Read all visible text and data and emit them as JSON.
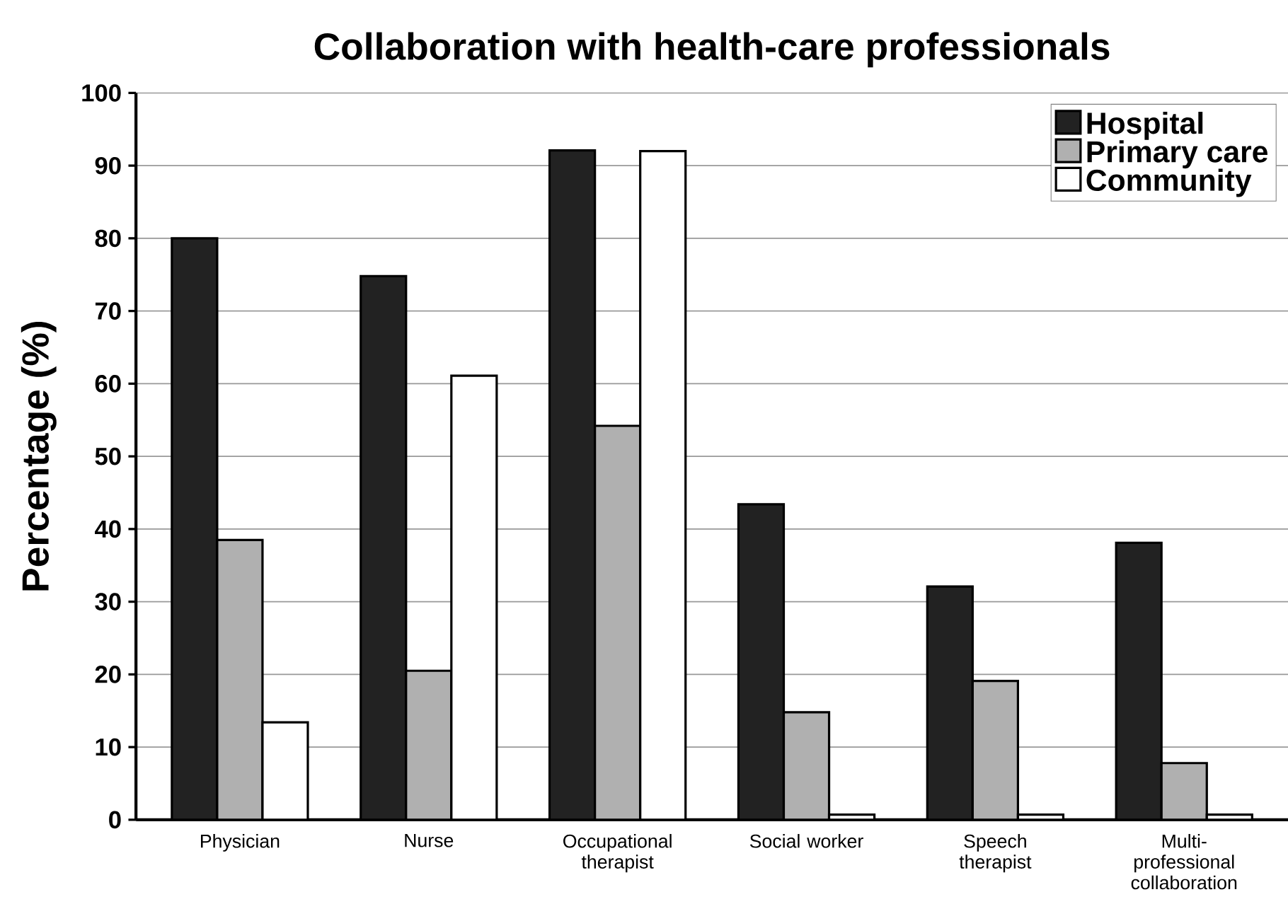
{
  "chart_data": {
    "type": "bar",
    "title": "Collaboration with health-care professionals",
    "ylabel": "Percentage (%)",
    "categories": [
      "Physician",
      "Nurse",
      "Occupational therapist",
      "Social worker",
      "Speech therapist",
      "Multi-professional collaboration"
    ],
    "series": [
      {
        "name": "Hospital",
        "color": "#222222",
        "values": [
          80,
          74.8,
          92.1,
          43.4,
          32.1,
          38.1
        ]
      },
      {
        "name": "Primary care",
        "color": "#b0b0b0",
        "values": [
          38.5,
          20.5,
          54.2,
          14.8,
          19.1,
          7.8
        ]
      },
      {
        "name": "Community",
        "color": "#ffffff",
        "values": [
          13.4,
          61.1,
          92,
          0.7,
          0.7,
          0.7
        ]
      }
    ],
    "ylim": [
      0,
      100
    ],
    "yticks": [
      0,
      10,
      20,
      30,
      40,
      50,
      60,
      70,
      80,
      90,
      100
    ],
    "grid": "y",
    "legend": "top right"
  }
}
